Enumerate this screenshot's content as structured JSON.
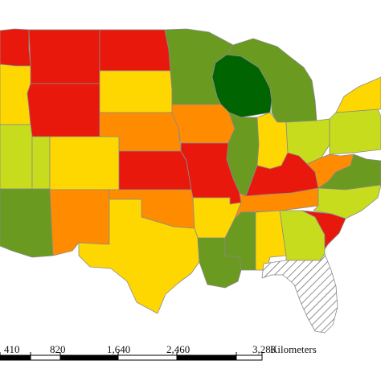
{
  "map": {
    "palette": {
      "dark_green": "#006400",
      "green": "#6a9a1f",
      "yellow_green": "#c8dc1e",
      "yellow": "#ffd700",
      "orange": "#ff8c00",
      "red_orange": "#ff4500",
      "red": "#e8190c"
    },
    "hatched_region": "Florida",
    "states": [
      {
        "name": "Washington",
        "class": "red"
      },
      {
        "name": "Montana",
        "class": "red"
      },
      {
        "name": "North Dakota",
        "class": "red"
      },
      {
        "name": "Idaho",
        "class": "yellow"
      },
      {
        "name": "Wyoming",
        "class": "red"
      },
      {
        "name": "South Dakota",
        "class": "yellow"
      },
      {
        "name": "Minnesota",
        "class": "green"
      },
      {
        "name": "Wisconsin",
        "class": "dark_green"
      },
      {
        "name": "Michigan",
        "class": "green"
      },
      {
        "name": "Nevada",
        "class": "yellow_green"
      },
      {
        "name": "Utah",
        "class": "yellow_green"
      },
      {
        "name": "Colorado",
        "class": "yellow"
      },
      {
        "name": "Nebraska",
        "class": "orange"
      },
      {
        "name": "Iowa",
        "class": "orange"
      },
      {
        "name": "Illinois",
        "class": "green"
      },
      {
        "name": "Indiana",
        "class": "yellow"
      },
      {
        "name": "Ohio",
        "class": "yellow_green"
      },
      {
        "name": "Pennsylvania",
        "class": "yellow_green"
      },
      {
        "name": "New York",
        "class": "yellow"
      },
      {
        "name": "Arizona",
        "class": "green"
      },
      {
        "name": "New Mexico",
        "class": "orange"
      },
      {
        "name": "Kansas",
        "class": "red"
      },
      {
        "name": "Missouri",
        "class": "red"
      },
      {
        "name": "Kentucky",
        "class": "red"
      },
      {
        "name": "West Virginia",
        "class": "orange"
      },
      {
        "name": "Virginia",
        "class": "green"
      },
      {
        "name": "Oklahoma",
        "class": "orange"
      },
      {
        "name": "Arkansas",
        "class": "yellow"
      },
      {
        "name": "Tennessee",
        "class": "orange"
      },
      {
        "name": "North Carolina",
        "class": "yellow_green"
      },
      {
        "name": "Texas",
        "class": "yellow"
      },
      {
        "name": "Louisiana",
        "class": "green"
      },
      {
        "name": "Mississippi",
        "class": "green"
      },
      {
        "name": "Alabama",
        "class": "yellow"
      },
      {
        "name": "Georgia",
        "class": "yellow_green"
      },
      {
        "name": "South Carolina",
        "class": "red"
      },
      {
        "name": "Florida",
        "class": "hatched"
      }
    ]
  },
  "scale_bar": {
    "ticks": [
      "410",
      "820",
      "1,640",
      "2,460",
      "3,280"
    ],
    "unit": "Kilometers"
  }
}
